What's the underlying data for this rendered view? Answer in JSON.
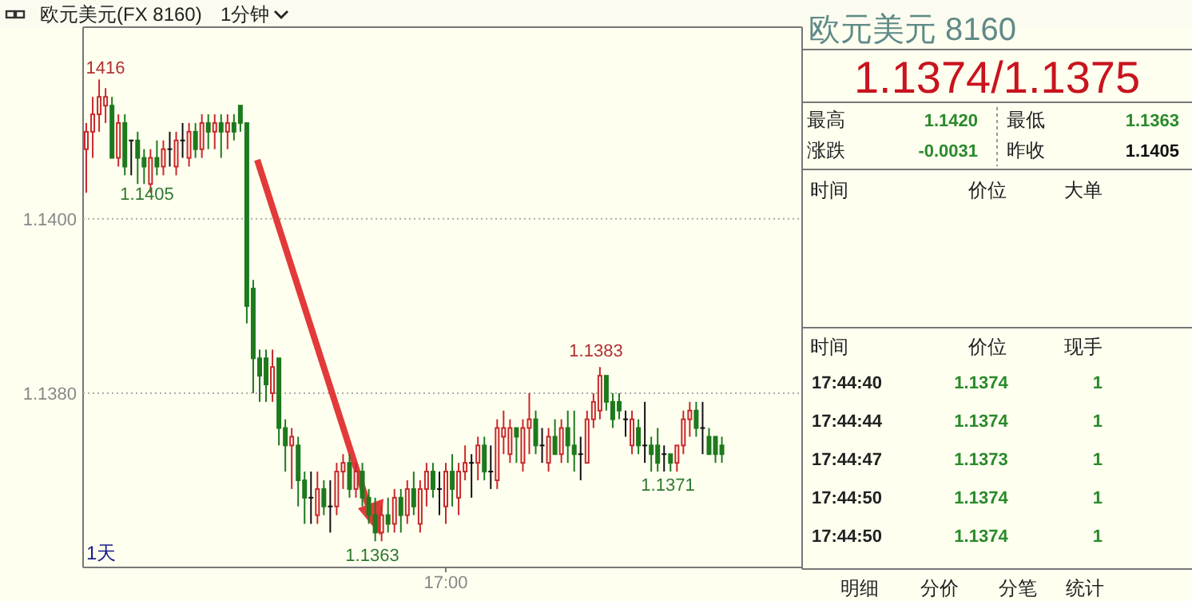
{
  "chart_data": {
    "type": "candlestick",
    "title": "欧元美元(FX 8160)",
    "subtitle": "1分钟",
    "grid": "y",
    "ylim": [
      1.136,
      1.1422
    ],
    "yticks": [
      {
        "value": 1.14,
        "label": "1.1400"
      },
      {
        "value": 1.138,
        "label": "1.1380"
      }
    ],
    "categories": [
      null,
      null,
      null,
      null,
      null,
      null,
      null,
      null,
      null,
      null,
      null,
      null,
      null,
      null,
      null,
      null,
      null,
      null,
      null,
      null,
      null,
      null,
      null,
      null,
      null,
      null,
      null,
      null,
      null,
      null,
      null,
      null,
      null,
      null,
      null,
      null,
      null,
      null,
      null,
      null,
      null,
      null,
      null,
      null,
      null,
      null,
      null,
      null,
      null,
      null,
      null,
      null,
      null,
      null,
      null,
      null,
      "17:00",
      null,
      null,
      null,
      null,
      null,
      null,
      null,
      null,
      null,
      null,
      null,
      null,
      null,
      null,
      null,
      null,
      null,
      null,
      null,
      null,
      null,
      null,
      null,
      null,
      null,
      null,
      null,
      null,
      null,
      null,
      null,
      null,
      null,
      null,
      null,
      null,
      null,
      null,
      null,
      null,
      null,
      null,
      null,
      null,
      null,
      null,
      null,
      null,
      null,
      null,
      null,
      null,
      null,
      null,
      null
    ],
    "ohlc": [
      [
        1.1408,
        1.1411,
        1.1403,
        1.141
      ],
      [
        1.141,
        1.1414,
        1.1407,
        1.1412
      ],
      [
        1.1412,
        1.1416,
        1.141,
        1.1414
      ],
      [
        1.1413,
        1.1415,
        1.1411,
        1.1414
      ],
      [
        1.1413,
        1.1414,
        1.1407,
        1.1407
      ],
      [
        1.1407,
        1.1412,
        1.1406,
        1.1411
      ],
      [
        1.1411,
        1.1412,
        1.1405,
        1.1406
      ],
      [
        1.1409,
        1.1409,
        1.1405,
        1.1409
      ],
      [
        1.1409,
        1.141,
        1.1404,
        1.1407
      ],
      [
        1.1407,
        1.1408,
        1.1404,
        1.1406
      ],
      [
        1.1404,
        1.1408,
        1.1403,
        1.1407
      ],
      [
        1.1407,
        1.1409,
        1.1405,
        1.1406
      ],
      [
        1.1406,
        1.1409,
        1.1405,
        1.1408
      ],
      [
        1.1408,
        1.141,
        1.1406,
        1.1408
      ],
      [
        1.1406,
        1.141,
        1.1405,
        1.1409
      ],
      [
        1.1409,
        1.1411,
        1.1407,
        1.1409
      ],
      [
        1.1407,
        1.1411,
        1.1406,
        1.141
      ],
      [
        1.141,
        1.1411,
        1.1407,
        1.1408
      ],
      [
        1.1408,
        1.1412,
        1.1407,
        1.1411
      ],
      [
        1.1411,
        1.1412,
        1.1408,
        1.141
      ],
      [
        1.141,
        1.1412,
        1.1408,
        1.1411
      ],
      [
        1.1411,
        1.1412,
        1.1407,
        1.141
      ],
      [
        1.141,
        1.1412,
        1.1408,
        1.1411
      ],
      [
        1.1411,
        1.1412,
        1.1409,
        1.141
      ],
      [
        1.1413,
        1.1413,
        1.141,
        1.1411
      ],
      [
        1.1411,
        1.1411,
        1.1388,
        1.139
      ],
      [
        1.1392,
        1.1393,
        1.138,
        1.1384
      ],
      [
        1.1384,
        1.1385,
        1.1379,
        1.1382
      ],
      [
        1.1384,
        1.1385,
        1.1379,
        1.1381
      ],
      [
        1.138,
        1.1385,
        1.1379,
        1.1383
      ],
      [
        1.1384,
        1.1384,
        1.1374,
        1.1376
      ],
      [
        1.1376,
        1.1377,
        1.1371,
        1.1374
      ],
      [
        1.1374,
        1.1376,
        1.1369,
        1.1375
      ],
      [
        1.1374,
        1.1375,
        1.1367,
        1.137
      ],
      [
        1.137,
        1.1371,
        1.1365,
        1.1368
      ],
      [
        1.1368,
        1.1371,
        1.1365,
        1.1368
      ],
      [
        1.1366,
        1.1371,
        1.1365,
        1.1369
      ],
      [
        1.1369,
        1.137,
        1.1366,
        1.1367
      ],
      [
        1.1367,
        1.137,
        1.1364,
        1.1367
      ],
      [
        1.1367,
        1.1372,
        1.1366,
        1.1371
      ],
      [
        1.1371,
        1.1373,
        1.1369,
        1.1372
      ],
      [
        1.1372,
        1.1373,
        1.1368,
        1.1369
      ],
      [
        1.1369,
        1.1372,
        1.1368,
        1.1371
      ],
      [
        1.1371,
        1.1372,
        1.1367,
        1.1368
      ],
      [
        1.1368,
        1.1369,
        1.1365,
        1.1366
      ],
      [
        1.1366,
        1.1368,
        1.1363,
        1.1364
      ],
      [
        1.1364,
        1.1367,
        1.1363,
        1.1366
      ],
      [
        1.1366,
        1.1368,
        1.1364,
        1.1365
      ],
      [
        1.1365,
        1.1369,
        1.1364,
        1.1368
      ],
      [
        1.1368,
        1.1369,
        1.1364,
        1.1366
      ],
      [
        1.1366,
        1.137,
        1.1365,
        1.1369
      ],
      [
        1.1369,
        1.1371,
        1.1366,
        1.1367
      ],
      [
        1.1365,
        1.137,
        1.1364,
        1.1369
      ],
      [
        1.1369,
        1.1372,
        1.1367,
        1.1371
      ],
      [
        1.1371,
        1.1372,
        1.1368,
        1.1369
      ],
      [
        1.1369,
        1.1371,
        1.1366,
        1.1369
      ],
      [
        1.1367,
        1.1372,
        1.1365,
        1.1371
      ],
      [
        1.1371,
        1.1373,
        1.1367,
        1.1369
      ],
      [
        1.1368,
        1.1372,
        1.1366,
        1.1371
      ],
      [
        1.1371,
        1.1374,
        1.137,
        1.1372
      ],
      [
        1.1372,
        1.1373,
        1.1368,
        1.1372
      ],
      [
        1.1372,
        1.1375,
        1.137,
        1.1374
      ],
      [
        1.1374,
        1.1375,
        1.137,
        1.1371
      ],
      [
        1.1371,
        1.1374,
        1.1369,
        1.1371
      ],
      [
        1.137,
        1.1377,
        1.1369,
        1.1376
      ],
      [
        1.1375,
        1.1378,
        1.1373,
        1.1376
      ],
      [
        1.1373,
        1.1377,
        1.1372,
        1.1376
      ],
      [
        1.1376,
        1.1376,
        1.1372,
        1.1375
      ],
      [
        1.1372,
        1.1377,
        1.1371,
        1.1376
      ],
      [
        1.1376,
        1.138,
        1.1373,
        1.1377
      ],
      [
        1.1377,
        1.1378,
        1.1373,
        1.1374
      ],
      [
        1.1374,
        1.1376,
        1.1372,
        1.1374
      ],
      [
        1.1372,
        1.1376,
        1.1371,
        1.1375
      ],
      [
        1.1375,
        1.1377,
        1.1373,
        1.1373
      ],
      [
        1.1373,
        1.1377,
        1.1372,
        1.1376
      ],
      [
        1.1376,
        1.1378,
        1.1372,
        1.1374
      ],
      [
        1.1374,
        1.1378,
        1.1371,
        1.1373
      ],
      [
        1.1373,
        1.1375,
        1.137,
        1.1373
      ],
      [
        1.1372,
        1.1378,
        1.1372,
        1.1377
      ],
      [
        1.1377,
        1.138,
        1.1376,
        1.1379
      ],
      [
        1.1378,
        1.1383,
        1.1377,
        1.1382
      ],
      [
        1.1382,
        1.1382,
        1.1378,
        1.1379
      ],
      [
        1.1379,
        1.138,
        1.1376,
        1.1377
      ],
      [
        1.1379,
        1.138,
        1.1377,
        1.1378
      ],
      [
        1.1377,
        1.1378,
        1.1375,
        1.1377
      ],
      [
        1.1374,
        1.1378,
        1.1373,
        1.1377
      ],
      [
        1.1376,
        1.1377,
        1.1373,
        1.1374
      ],
      [
        1.1374,
        1.1379,
        1.1372,
        1.1374
      ],
      [
        1.1374,
        1.1375,
        1.1371,
        1.1373
      ],
      [
        1.1374,
        1.1376,
        1.1371,
        1.1372
      ],
      [
        1.1373,
        1.1374,
        1.1371,
        1.1373
      ],
      [
        1.1373,
        1.1373,
        1.1371,
        1.1372
      ],
      [
        1.1372,
        1.1374,
        1.1371,
        1.1374
      ],
      [
        1.1374,
        1.1378,
        1.1373,
        1.1377
      ],
      [
        1.1377,
        1.1379,
        1.1375,
        1.1378
      ],
      [
        1.1378,
        1.1379,
        1.1375,
        1.1376
      ],
      [
        1.1376,
        1.1379,
        1.1373,
        1.1376
      ],
      [
        1.1375,
        1.1376,
        1.1373,
        1.1373
      ],
      [
        1.1375,
        1.1375,
        1.1372,
        1.1373
      ],
      [
        1.1374,
        1.1375,
        1.1372,
        1.1373
      ],
      null,
      null,
      null,
      null,
      null,
      null,
      null,
      null,
      null,
      null,
      null,
      null
    ],
    "annotations": [
      "1416",
      "1.1405",
      "1.1363",
      "1.1383",
      "1.1371",
      "1天",
      "欧元美元  8160",
      "1.1374/1.1375",
      "最高",
      "1.1420",
      "最低",
      "1.1363",
      "涨跌",
      "-0.0031",
      "昨收",
      "1.1405",
      "时间",
      "价位",
      "大单",
      "时间",
      "价位",
      "现手",
      "17:44:40",
      "1.1374",
      "1",
      "17:44:44",
      "1.1374",
      "1",
      "17:44:47",
      "1.1373",
      "1",
      "17:44:50",
      "1.1374",
      "1",
      "17:44:50",
      "1.1374",
      "1",
      "明细",
      "分价",
      "分笔",
      "统计"
    ]
  }
}
